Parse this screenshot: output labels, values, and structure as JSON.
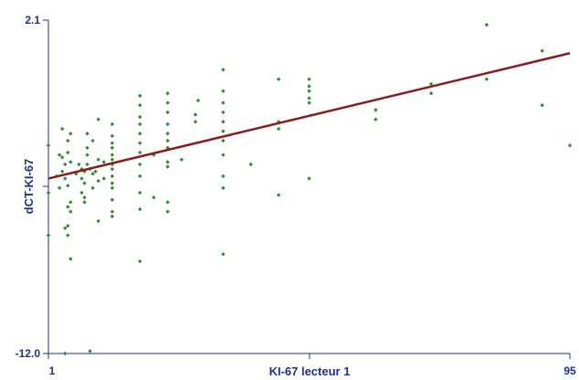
{
  "chart_data": {
    "type": "scatter",
    "title": "",
    "xlabel": "KI-67 lecteur 1",
    "ylabel": "dCT-KI-67",
    "xlim": [
      1,
      95
    ],
    "ylim": [
      -12.0,
      2.1
    ],
    "x_ticks": [
      "1",
      "95"
    ],
    "y_ticks": [
      "2.1",
      "-12.0"
    ],
    "grid": false,
    "legend": "none",
    "colors": {
      "points": "#2e8b2e",
      "fit_line": "#8b1a1a",
      "axis": "#1f2f8f",
      "text": "#1f2f8f"
    },
    "fit_line": {
      "x": [
        1,
        95
      ],
      "y": [
        -4.6,
        0.7
      ]
    },
    "points": [
      {
        "x": 1,
        "y": -3.2
      },
      {
        "x": 1,
        "y": -5.2
      },
      {
        "x": 1,
        "y": -7.0
      },
      {
        "x": 2.5,
        "y": -4.5
      },
      {
        "x": 3,
        "y": -3.6
      },
      {
        "x": 3,
        "y": -5.0
      },
      {
        "x": 3.5,
        "y": -2.5
      },
      {
        "x": 3.5,
        "y": -3.7
      },
      {
        "x": 3.5,
        "y": -4.3
      },
      {
        "x": 4,
        "y": -4.0
      },
      {
        "x": 4,
        "y": -4.6
      },
      {
        "x": 4,
        "y": -6.7
      },
      {
        "x": 4,
        "y": -12.0
      },
      {
        "x": 4.5,
        "y": -3.0
      },
      {
        "x": 4.5,
        "y": -3.5
      },
      {
        "x": 4.5,
        "y": -4.9
      },
      {
        "x": 4.5,
        "y": -5.8
      },
      {
        "x": 4.5,
        "y": -6.6
      },
      {
        "x": 4.5,
        "y": -7.0
      },
      {
        "x": 5,
        "y": -2.7
      },
      {
        "x": 5,
        "y": -3.9
      },
      {
        "x": 5,
        "y": -5.6
      },
      {
        "x": 5,
        "y": -6.0
      },
      {
        "x": 5,
        "y": -8.0
      },
      {
        "x": 6,
        "y": -4.4
      },
      {
        "x": 6.5,
        "y": -4.0
      },
      {
        "x": 7,
        "y": -4.2
      },
      {
        "x": 7,
        "y": -4.6
      },
      {
        "x": 7,
        "y": -5.2
      },
      {
        "x": 7.5,
        "y": -4.3
      },
      {
        "x": 7.5,
        "y": -4.8
      },
      {
        "x": 7.5,
        "y": -5.4
      },
      {
        "x": 7.5,
        "y": -5.6
      },
      {
        "x": 8,
        "y": -2.7
      },
      {
        "x": 8,
        "y": -3.3
      },
      {
        "x": 8,
        "y": -3.6
      },
      {
        "x": 8,
        "y": -4.0
      },
      {
        "x": 8.5,
        "y": -4.2
      },
      {
        "x": 8.5,
        "y": -11.9
      },
      {
        "x": 9,
        "y": -3.0
      },
      {
        "x": 9,
        "y": -4.4
      },
      {
        "x": 9,
        "y": -5.0
      },
      {
        "x": 9.5,
        "y": -4.3
      },
      {
        "x": 10,
        "y": -2.1
      },
      {
        "x": 10,
        "y": -3.8
      },
      {
        "x": 10,
        "y": -4.7
      },
      {
        "x": 10,
        "y": -6.4
      },
      {
        "x": 11,
        "y": -3.9
      },
      {
        "x": 11,
        "y": -4.6
      },
      {
        "x": 12.5,
        "y": -2.3
      },
      {
        "x": 12.5,
        "y": -2.8
      },
      {
        "x": 12.5,
        "y": -3.1
      },
      {
        "x": 12.5,
        "y": -3.3
      },
      {
        "x": 12.5,
        "y": -3.6
      },
      {
        "x": 12.5,
        "y": -3.8
      },
      {
        "x": 12.5,
        "y": -4.0
      },
      {
        "x": 12.5,
        "y": -4.2
      },
      {
        "x": 12.5,
        "y": -4.5
      },
      {
        "x": 12.5,
        "y": -4.8
      },
      {
        "x": 12.5,
        "y": -5.0
      },
      {
        "x": 12.5,
        "y": -5.5
      },
      {
        "x": 12.5,
        "y": -6.0
      },
      {
        "x": 12.5,
        "y": -6.2
      },
      {
        "x": 17.5,
        "y": -1.1
      },
      {
        "x": 17.5,
        "y": -1.5
      },
      {
        "x": 17.5,
        "y": -2.0
      },
      {
        "x": 17.5,
        "y": -2.3
      },
      {
        "x": 17.5,
        "y": -2.7
      },
      {
        "x": 17.5,
        "y": -3.1
      },
      {
        "x": 17.5,
        "y": -3.5
      },
      {
        "x": 17.5,
        "y": -4.0
      },
      {
        "x": 17.5,
        "y": -4.5
      },
      {
        "x": 17.5,
        "y": -5.2
      },
      {
        "x": 17.5,
        "y": -5.9
      },
      {
        "x": 17.5,
        "y": -8.1
      },
      {
        "x": 20,
        "y": -3.6
      },
      {
        "x": 20,
        "y": -5.4
      },
      {
        "x": 22.5,
        "y": -1.0
      },
      {
        "x": 22.5,
        "y": -1.4
      },
      {
        "x": 22.5,
        "y": -1.8
      },
      {
        "x": 22.5,
        "y": -2.3
      },
      {
        "x": 22.5,
        "y": -2.7
      },
      {
        "x": 22.5,
        "y": -3.0
      },
      {
        "x": 22.5,
        "y": -3.3
      },
      {
        "x": 22.5,
        "y": -3.9
      },
      {
        "x": 22.5,
        "y": -4.1
      },
      {
        "x": 22.5,
        "y": -5.6
      },
      {
        "x": 22.5,
        "y": -6.0
      },
      {
        "x": 25,
        "y": -3.8
      },
      {
        "x": 27.5,
        "y": -1.9
      },
      {
        "x": 27.5,
        "y": -2.2
      },
      {
        "x": 28,
        "y": -1.3
      },
      {
        "x": 32.5,
        "y": -0.9
      },
      {
        "x": 32.5,
        "y": -1.4
      },
      {
        "x": 32.5,
        "y": -1.8
      },
      {
        "x": 32.5,
        "y": -2.2
      },
      {
        "x": 32.5,
        "y": -2.6
      },
      {
        "x": 32.5,
        "y": -3.0
      },
      {
        "x": 32.5,
        "y": -3.6
      },
      {
        "x": 32.5,
        "y": -4.5
      },
      {
        "x": 32.5,
        "y": -5.0
      },
      {
        "x": 32.5,
        "y": -7.8
      },
      {
        "x": 32.5,
        "y": 0.0
      },
      {
        "x": 37.5,
        "y": -4.0
      },
      {
        "x": 42.5,
        "y": -2.2
      },
      {
        "x": 42.5,
        "y": -2.5
      },
      {
        "x": 42.5,
        "y": -0.4
      },
      {
        "x": 42.5,
        "y": -5.3
      },
      {
        "x": 48,
        "y": -0.4
      },
      {
        "x": 48,
        "y": -0.7
      },
      {
        "x": 48,
        "y": -0.9
      },
      {
        "x": 48,
        "y": -1.2
      },
      {
        "x": 48,
        "y": -1.4
      },
      {
        "x": 48,
        "y": -4.6
      },
      {
        "x": 60,
        "y": -1.7
      },
      {
        "x": 60,
        "y": -2.1
      },
      {
        "x": 70,
        "y": -0.6
      },
      {
        "x": 70,
        "y": -1.0
      },
      {
        "x": 80,
        "y": 1.9
      },
      {
        "x": 80,
        "y": -0.4
      },
      {
        "x": 90,
        "y": 0.8
      },
      {
        "x": 90,
        "y": -1.5
      },
      {
        "x": 95,
        "y": -3.2
      }
    ]
  }
}
